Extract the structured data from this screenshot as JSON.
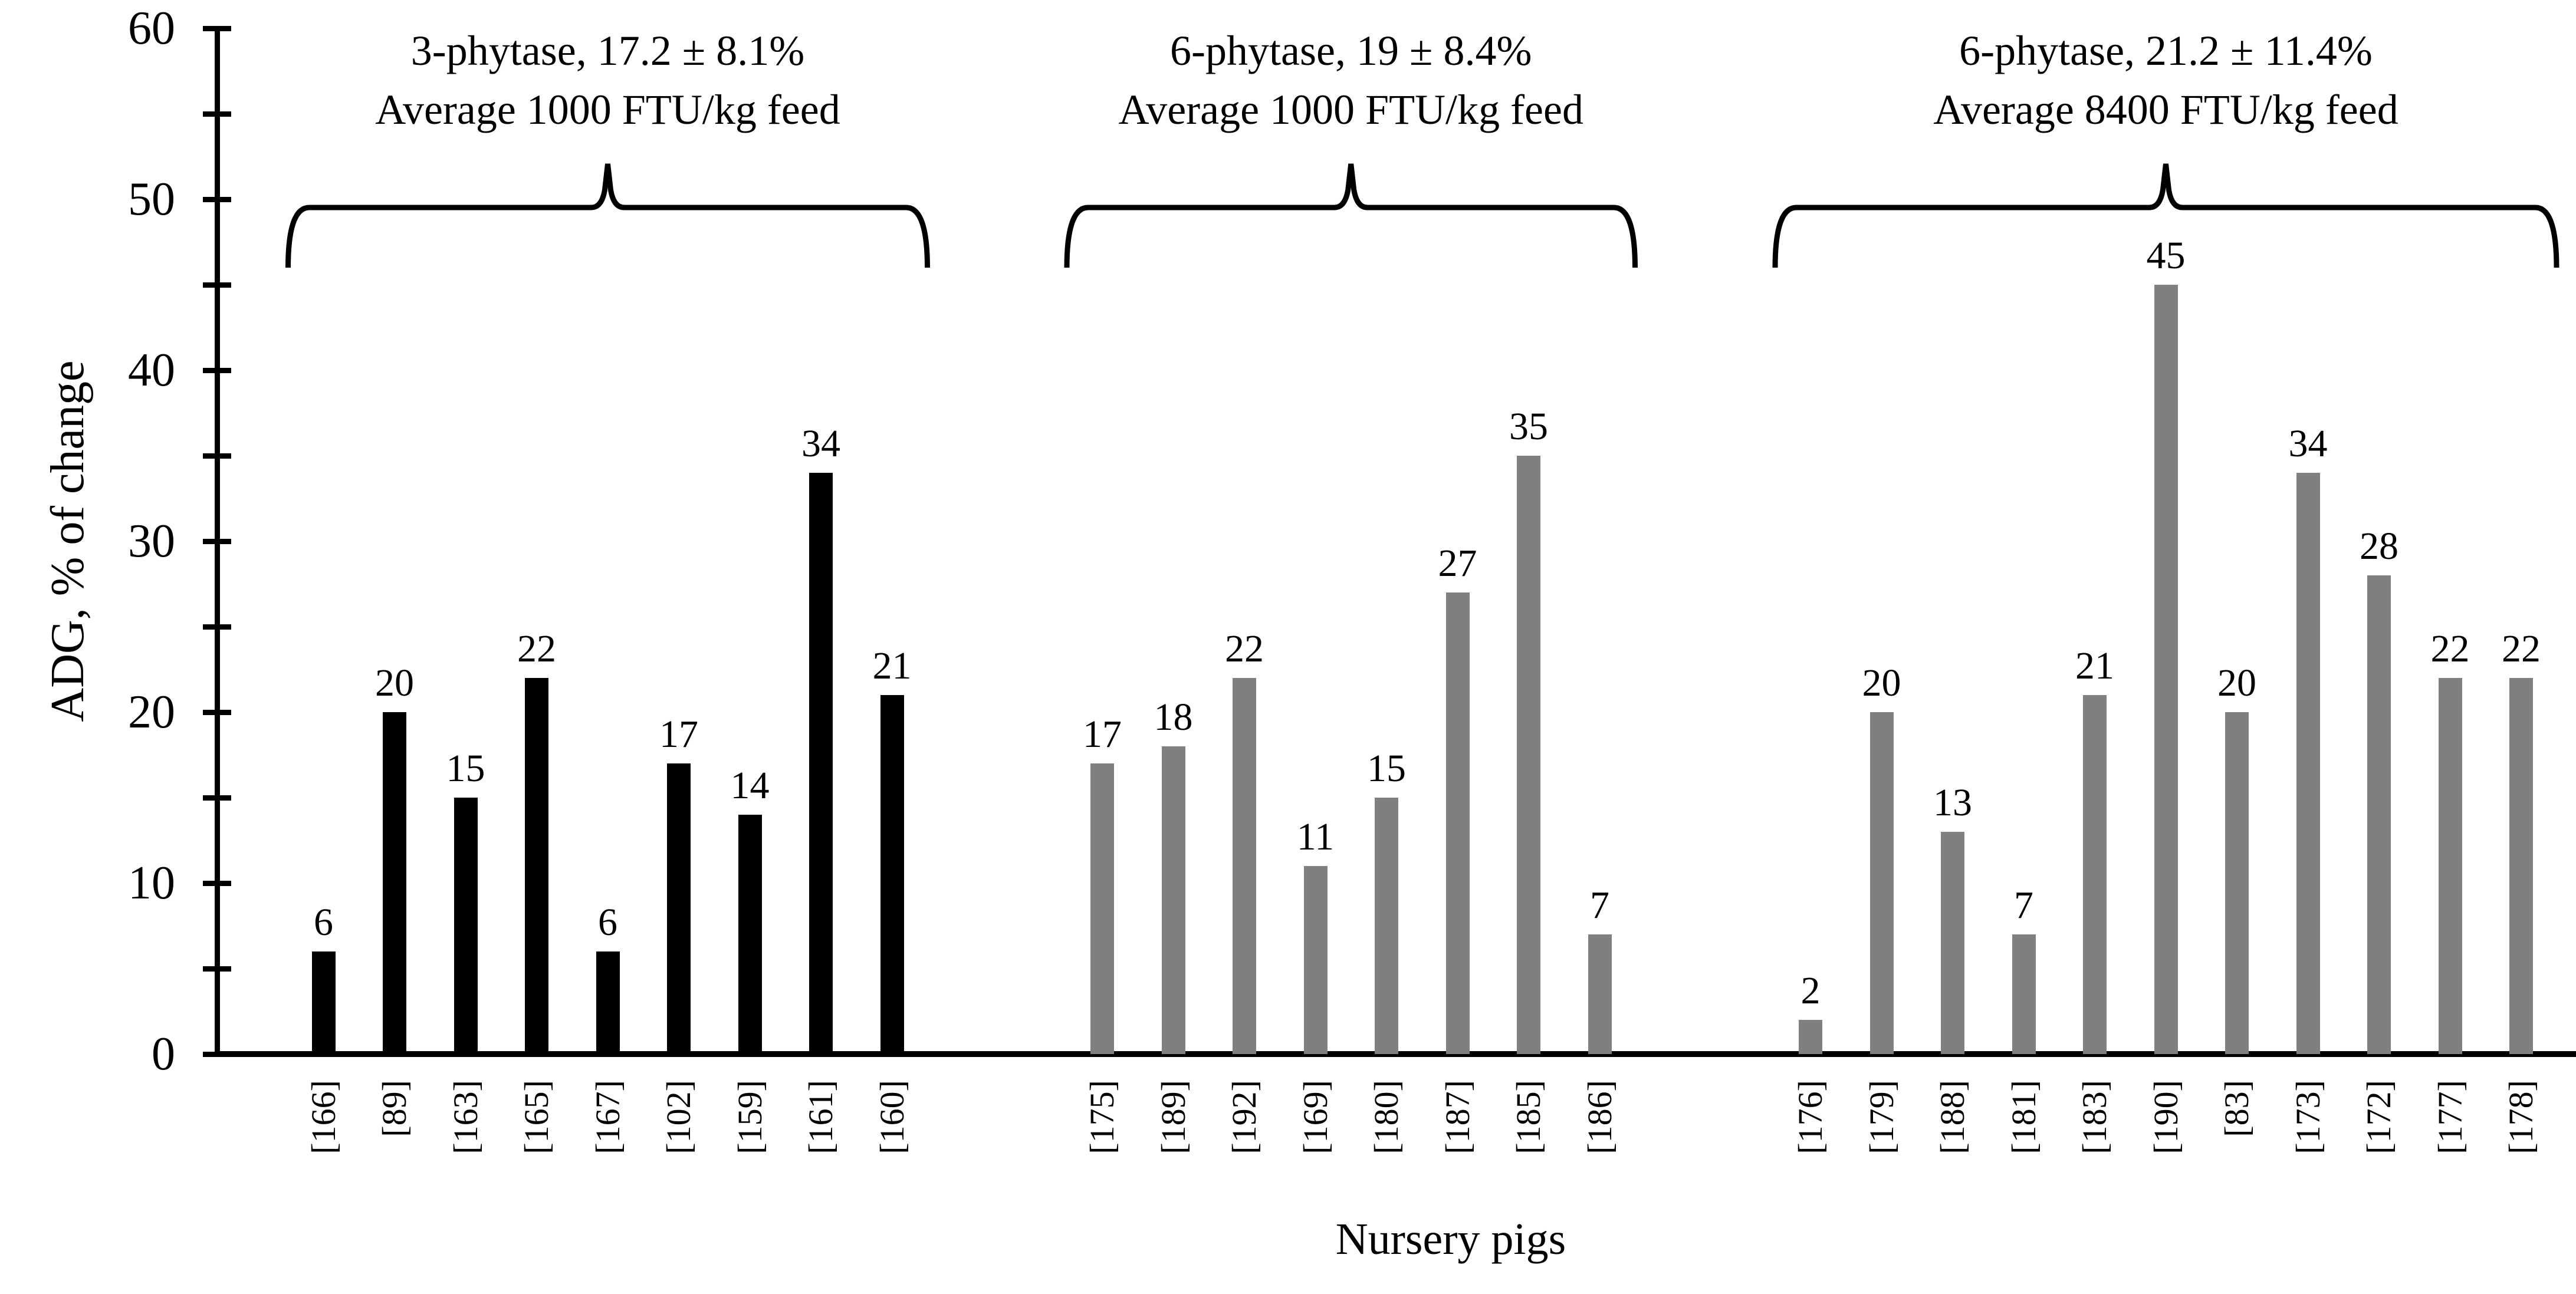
{
  "chart_data": {
    "type": "bar",
    "title": "",
    "xlabel": "Nursery pigs",
    "ylabel": "ADG, % of change",
    "ylim": [
      0,
      60
    ],
    "y_major_ticks": [
      0,
      10,
      20,
      30,
      40,
      50,
      60
    ],
    "y_minor_step": 5,
    "grid": false,
    "legend": "none",
    "bar_value_labels_shown": true,
    "groups": [
      {
        "annotation_line1": "3-phytase, 17.2 ± 8.1%",
        "annotation_line2": "Average 1000 FTU/kg feed",
        "bar_color": "#000000",
        "categories": [
          "[166]",
          "[89]",
          "[163]",
          "[165]",
          "[167]",
          "[102]",
          "[159]",
          "[161]",
          "[160]"
        ],
        "values": [
          6,
          20,
          15,
          22,
          6,
          17,
          14,
          34,
          21
        ]
      },
      {
        "annotation_line1": "6-phytase, 19 ± 8.4%",
        "annotation_line2": "Average 1000 FTU/kg feed",
        "bar_color": "#7f7f7f",
        "categories": [
          "[175]",
          "[189]",
          "[192]",
          "[169]",
          "[180]",
          "[187]",
          "[185]",
          "[186]"
        ],
        "values": [
          17,
          18,
          22,
          11,
          15,
          27,
          35,
          7
        ]
      },
      {
        "annotation_line1": "6-phytase, 21.2 ± 11.4%",
        "annotation_line2": "Average 8400 FTU/kg feed",
        "bar_color": "#7f7f7f",
        "categories": [
          "[176]",
          "[179]",
          "[188]",
          "[181]",
          "[183]",
          "[190]",
          "[83]",
          "[173]",
          "[172]",
          "[177]",
          "[178]"
        ],
        "values": [
          2,
          20,
          13,
          7,
          21,
          45,
          20,
          34,
          28,
          22,
          22
        ]
      }
    ],
    "colors": {
      "axis": "#000000",
      "text": "#000000",
      "background": "#ffffff"
    }
  }
}
